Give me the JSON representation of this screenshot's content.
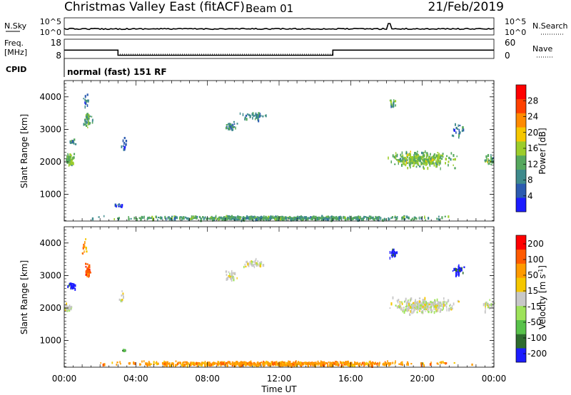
{
  "header": {
    "station": "Christmas Valley East (fitACF)",
    "beam": "Beam 01",
    "date": "21/Feb/2019"
  },
  "noise_panel": {
    "left_label": "N.Sky",
    "right_label": "N.Search",
    "left_ticks": [
      "10^5",
      "10^0"
    ],
    "right_ticks": [
      "10^5",
      "10^0"
    ]
  },
  "freq_panel": {
    "left_label_line1": "Freq.",
    "left_label_line2": "[MHz]",
    "right_label": "Nave",
    "left_ticks": [
      "18",
      "8"
    ],
    "right_ticks": [
      "60",
      "0"
    ],
    "freq_steps": [
      {
        "start_h": 0,
        "end_h": 3.0,
        "mhz": 14.5
      },
      {
        "start_h": 3.0,
        "end_h": 15.0,
        "mhz": 10.5
      },
      {
        "start_h": 15.0,
        "end_h": 24.0,
        "mhz": 14.5
      }
    ]
  },
  "cpid": {
    "label": "CPID",
    "text": "normal (fast) 151 RF"
  },
  "chart_data": [
    {
      "type": "heatmap",
      "name": "power",
      "ylabel": "Slant Range [km]",
      "ylim": [
        180,
        4500
      ],
      "yticks": [
        1000,
        2000,
        3000,
        4000
      ],
      "xlim": [
        0,
        24
      ],
      "colorbar_label": "Power [dB]",
      "colorbar_ticks": [
        "4",
        "8",
        "12",
        "16",
        "20",
        "24",
        "28"
      ],
      "colorbar_range": [
        0,
        32
      ],
      "colors": [
        "#1c1cff",
        "#2c5bb0",
        "#3e8a8c",
        "#56a85e",
        "#9ccd2b",
        "#f5c700",
        "#ff8a00",
        "#ff4000",
        "#ff0000"
      ],
      "blobs": [
        {
          "t": 0.3,
          "r": 2100,
          "dt": 0.3,
          "dr": 250,
          "p": 14,
          "n": 60
        },
        {
          "t": 0.4,
          "r": 2650,
          "dt": 0.2,
          "dr": 120,
          "p": 10,
          "n": 15
        },
        {
          "t": 1.3,
          "r": 3300,
          "dt": 0.3,
          "dr": 300,
          "p": 12,
          "n": 40
        },
        {
          "t": 1.2,
          "r": 3900,
          "dt": 0.2,
          "dr": 300,
          "p": 8,
          "n": 15
        },
        {
          "t": 3.3,
          "r": 2500,
          "dt": 0.2,
          "dr": 400,
          "p": 6,
          "n": 12
        },
        {
          "t": 9.3,
          "r": 3100,
          "dt": 0.4,
          "dr": 200,
          "p": 9,
          "n": 35
        },
        {
          "t": 10.5,
          "r": 3450,
          "dt": 0.9,
          "dr": 180,
          "p": 9,
          "n": 45
        },
        {
          "t": 18.3,
          "r": 3800,
          "dt": 0.3,
          "dr": 220,
          "p": 12,
          "n": 20
        },
        {
          "t": 20.0,
          "r": 2100,
          "dt": 2.3,
          "dr": 320,
          "p": 14,
          "n": 340
        },
        {
          "t": 22.0,
          "r": 3000,
          "dt": 0.5,
          "dr": 250,
          "p": 8,
          "n": 20
        },
        {
          "t": 23.7,
          "r": 2100,
          "dt": 0.4,
          "dr": 200,
          "p": 12,
          "n": 30
        },
        {
          "t": 12.0,
          "r": 300,
          "dt": 11.5,
          "dr": 80,
          "p": 11,
          "n": 700
        },
        {
          "t": 3.0,
          "r": 700,
          "dt": 0.5,
          "dr": 100,
          "p": 5,
          "n": 10
        }
      ]
    },
    {
      "type": "heatmap",
      "name": "velocity",
      "ylabel": "Slant Range [km]",
      "ylim": [
        180,
        4500
      ],
      "yticks": [
        1000,
        2000,
        3000,
        4000
      ],
      "xlim": [
        0,
        24
      ],
      "xticks": [
        "00:00",
        "04:00",
        "08:00",
        "12:00",
        "16:00",
        "20:00",
        "00:00"
      ],
      "xlabel": "Time UT",
      "colorbar_label": "Velocity [m s^-1]",
      "colorbar_ticks": [
        "200",
        "100",
        "50",
        "15",
        "-15",
        "-50",
        "-100",
        "-200"
      ],
      "colors": [
        "#1c1cff",
        "#2e6b2e",
        "#58c24a",
        "#9ee35a",
        "#c8c8c8",
        "#f5c700",
        "#ff9a00",
        "#ff5a00",
        "#ff0000"
      ],
      "blobs": [
        {
          "t": 0.2,
          "r": 2050,
          "dt": 0.3,
          "dr": 150,
          "v": 4,
          "n": 40
        },
        {
          "t": 0.4,
          "r": 2700,
          "dt": 0.3,
          "dr": 120,
          "v": 0,
          "n": 25
        },
        {
          "t": 1.3,
          "r": 3200,
          "dt": 0.2,
          "dr": 250,
          "v": 7,
          "n": 45
        },
        {
          "t": 1.1,
          "r": 3900,
          "dt": 0.2,
          "dr": 300,
          "v": 6,
          "n": 12
        },
        {
          "t": 3.2,
          "r": 2300,
          "dt": 0.2,
          "dr": 300,
          "v": 4,
          "n": 10
        },
        {
          "t": 9.3,
          "r": 3050,
          "dt": 0.4,
          "dr": 200,
          "v": 4,
          "n": 30
        },
        {
          "t": 10.5,
          "r": 3400,
          "dt": 0.9,
          "dr": 180,
          "v": 4,
          "n": 40
        },
        {
          "t": 18.3,
          "r": 3700,
          "dt": 0.3,
          "dr": 200,
          "v": 0,
          "n": 25
        },
        {
          "t": 20.0,
          "r": 2100,
          "dt": 2.3,
          "dr": 300,
          "v": 4,
          "n": 330
        },
        {
          "t": 22.0,
          "r": 3200,
          "dt": 0.4,
          "dr": 200,
          "v": 0,
          "n": 35
        },
        {
          "t": 23.7,
          "r": 2100,
          "dt": 0.4,
          "dr": 200,
          "v": 4,
          "n": 30
        },
        {
          "t": 12.0,
          "r": 320,
          "dt": 11.5,
          "dr": 90,
          "v": 6,
          "n": 800
        },
        {
          "t": 3.3,
          "r": 700,
          "dt": 0.3,
          "dr": 150,
          "v": 2,
          "n": 6
        }
      ]
    }
  ]
}
